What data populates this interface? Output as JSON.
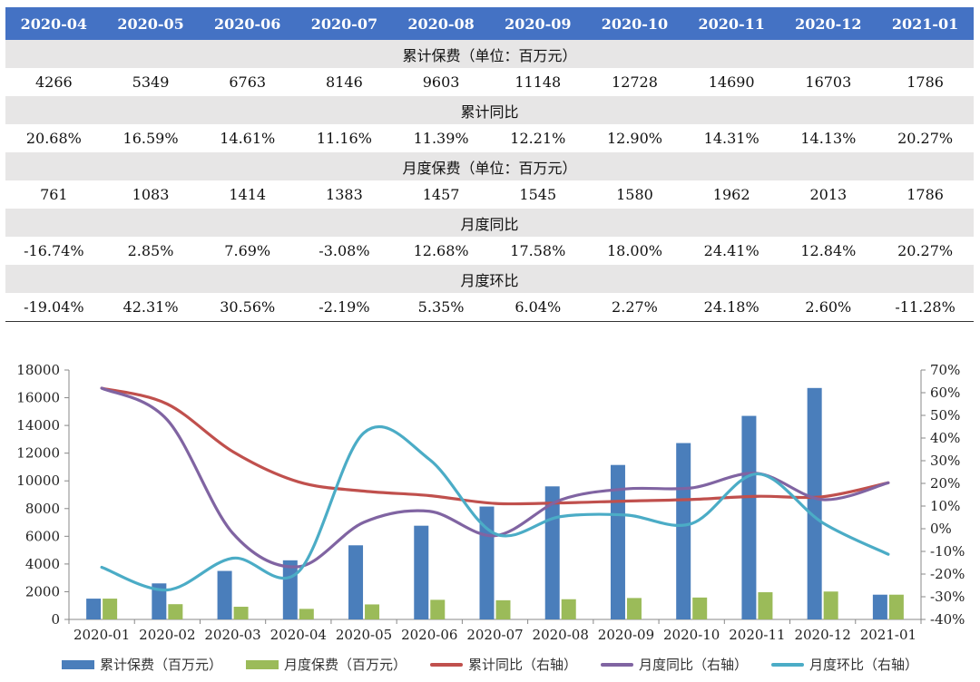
{
  "table": {
    "headers": [
      "2020-04",
      "2020-05",
      "2020-06",
      "2020-07",
      "2020-08",
      "2020-09",
      "2020-10",
      "2020-11",
      "2020-12",
      "2021-01"
    ],
    "sections": [
      {
        "title": "累计保费（单位：百万元）",
        "values": [
          "4266",
          "5349",
          "6763",
          "8146",
          "9603",
          "11148",
          "12728",
          "14690",
          "16703",
          "1786"
        ]
      },
      {
        "title": "累计同比",
        "values": [
          "20.68%",
          "16.59%",
          "14.61%",
          "11.16%",
          "11.39%",
          "12.21%",
          "12.90%",
          "14.31%",
          "14.13%",
          "20.27%"
        ]
      },
      {
        "title": "月度保费（单位：百万元）",
        "values": [
          "761",
          "1083",
          "1414",
          "1383",
          "1457",
          "1545",
          "1580",
          "1962",
          "2013",
          "1786"
        ]
      },
      {
        "title": "月度同比",
        "values": [
          "-16.74%",
          "2.85%",
          "7.69%",
          "-3.08%",
          "12.68%",
          "17.58%",
          "18.00%",
          "24.41%",
          "12.84%",
          "20.27%"
        ]
      },
      {
        "title": "月度环比",
        "values": [
          "-19.04%",
          "42.31%",
          "30.56%",
          "-2.19%",
          "5.35%",
          "6.04%",
          "2.27%",
          "24.18%",
          "2.60%",
          "-11.28%"
        ]
      }
    ]
  },
  "chart_data": {
    "type": "bar",
    "categories": [
      "2020-01",
      "2020-02",
      "2020-03",
      "2020-04",
      "2020-05",
      "2020-06",
      "2020-07",
      "2020-08",
      "2020-09",
      "2020-10",
      "2020-11",
      "2020-12",
      "2021-01"
    ],
    "y_left": {
      "min": 0,
      "max": 18000,
      "step": 2000,
      "ticks": [
        "0",
        "2000",
        "4000",
        "6000",
        "8000",
        "10000",
        "12000",
        "14000",
        "16000",
        "18000"
      ]
    },
    "y_right": {
      "min": -40,
      "max": 70,
      "step": 10,
      "ticks": [
        "-40%",
        "-30%",
        "-20%",
        "-10%",
        "0%",
        "10%",
        "20%",
        "30%",
        "40%",
        "50%",
        "60%",
        "70%"
      ]
    },
    "series": [
      {
        "name": "累计保费（百万元）",
        "type": "bar",
        "axis": "left",
        "color": "#4a7ebb",
        "values": [
          1500,
          2600,
          3500,
          4266,
          5349,
          6763,
          8146,
          9603,
          11148,
          12728,
          14690,
          16703,
          1786
        ]
      },
      {
        "name": "月度保费（百万元）",
        "type": "bar",
        "axis": "left",
        "color": "#9bbb59",
        "values": [
          1500,
          1100,
          914,
          761,
          1083,
          1414,
          1383,
          1457,
          1545,
          1580,
          1962,
          2013,
          1786
        ]
      },
      {
        "name": "累计同比（右轴）",
        "type": "line",
        "axis": "right",
        "color": "#c0504d",
        "values": [
          62,
          55,
          34,
          20.68,
          16.59,
          14.61,
          11.16,
          11.39,
          12.21,
          12.9,
          14.31,
          14.13,
          20.27
        ]
      },
      {
        "name": "月度同比（右轴）",
        "type": "line",
        "axis": "right",
        "color": "#8064a2",
        "values": [
          62,
          48,
          -2,
          -16.74,
          2.85,
          7.69,
          -3.08,
          12.68,
          17.58,
          18.0,
          24.41,
          12.84,
          20.27
        ]
      },
      {
        "name": "月度环比（右轴）",
        "type": "line",
        "axis": "right",
        "color": "#4bacc6",
        "values": [
          -17,
          -27,
          -13,
          -19.04,
          42.31,
          30.56,
          -2.19,
          5.35,
          6.04,
          2.27,
          24.18,
          2.6,
          -11.28
        ]
      }
    ]
  }
}
